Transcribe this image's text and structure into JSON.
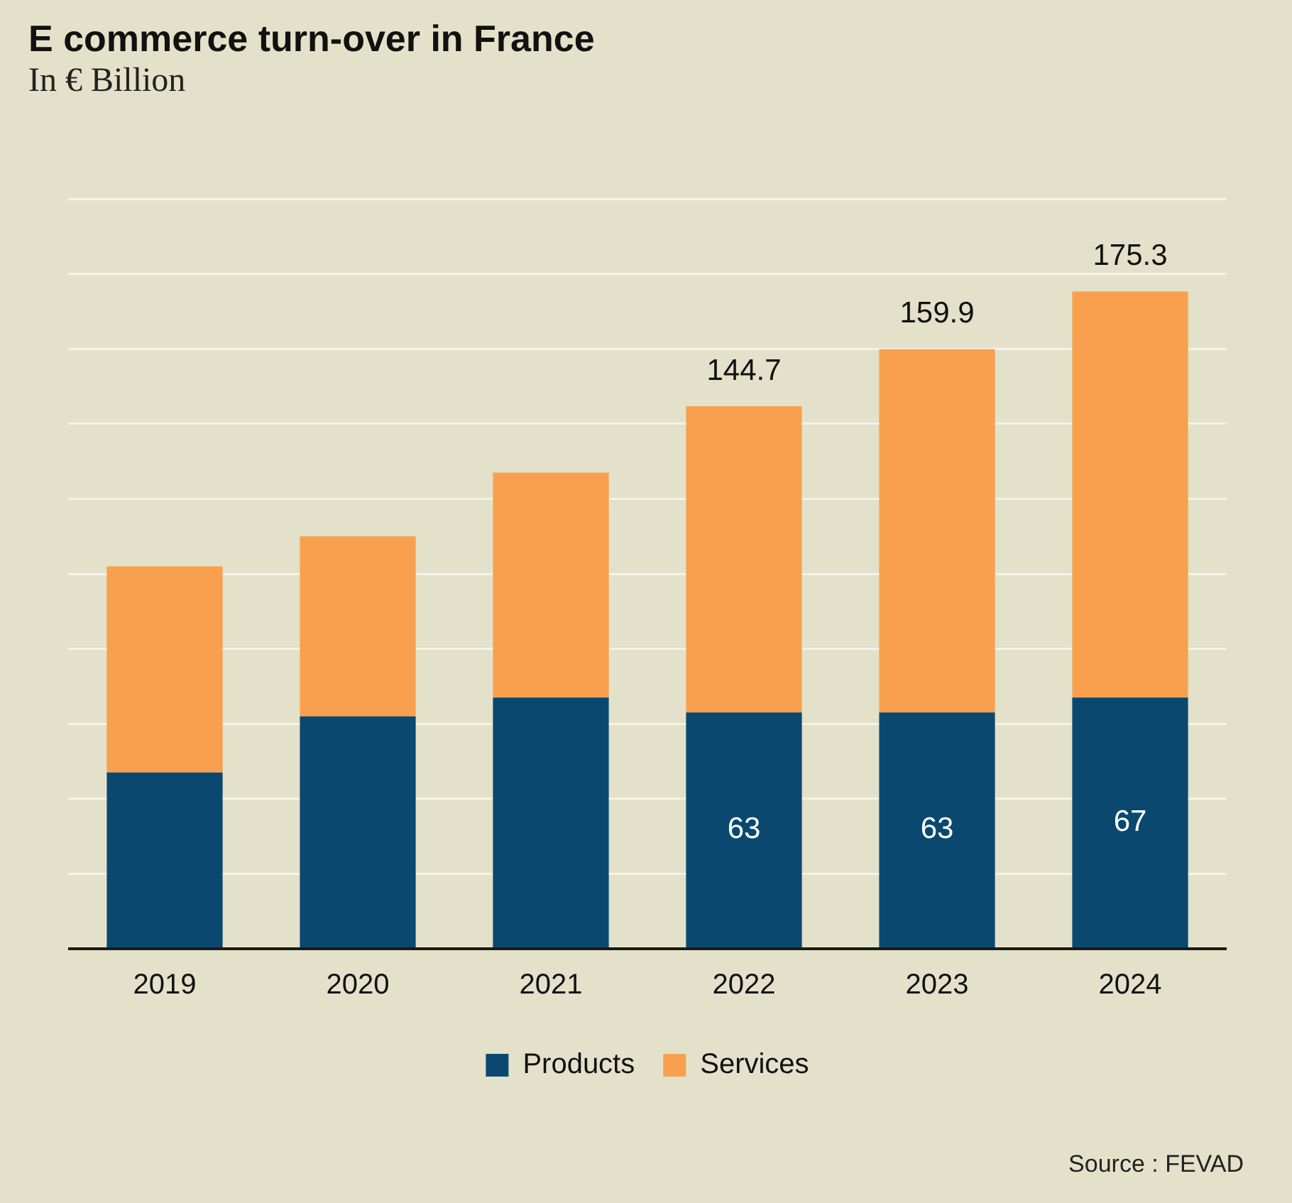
{
  "chart_data": {
    "type": "bar",
    "title": "E commerce turn-over in France",
    "subtitle": "In € Billion",
    "categories": [
      "2019",
      "2020",
      "2021",
      "2022",
      "2023",
      "2024"
    ],
    "series": [
      {
        "name": "Products",
        "color": "#0b4870",
        "values": [
          47,
          62,
          67,
          63,
          63,
          67
        ],
        "value_labels": [
          null,
          null,
          null,
          "63",
          "63",
          "67"
        ]
      },
      {
        "name": "Services",
        "color": "#f8a04e",
        "values": [
          55,
          48,
          60,
          81.7,
          96.9,
          108.3
        ]
      }
    ],
    "stacked": true,
    "totals": [
      null,
      null,
      null,
      "144.7",
      "159.9",
      "175.3"
    ],
    "ylim": [
      0,
      200
    ],
    "yticks": [
      {
        "value": 0,
        "label": null
      },
      {
        "value": 20,
        "label": null
      },
      {
        "value": 40,
        "label": null
      },
      {
        "value": 60,
        "label": null
      },
      {
        "value": 80,
        "label": null
      },
      {
        "value": 100,
        "label": null
      },
      {
        "value": 120,
        "label": null
      },
      {
        "value": 140,
        "label": null
      },
      {
        "value": 160,
        "label": null
      },
      {
        "value": 180,
        "label": null
      },
      {
        "value": 200,
        "label": null
      }
    ],
    "tick_labels": "x",
    "grid": "y",
    "legend": "bottom",
    "annotations": [
      "Source : FEVAD"
    ]
  }
}
